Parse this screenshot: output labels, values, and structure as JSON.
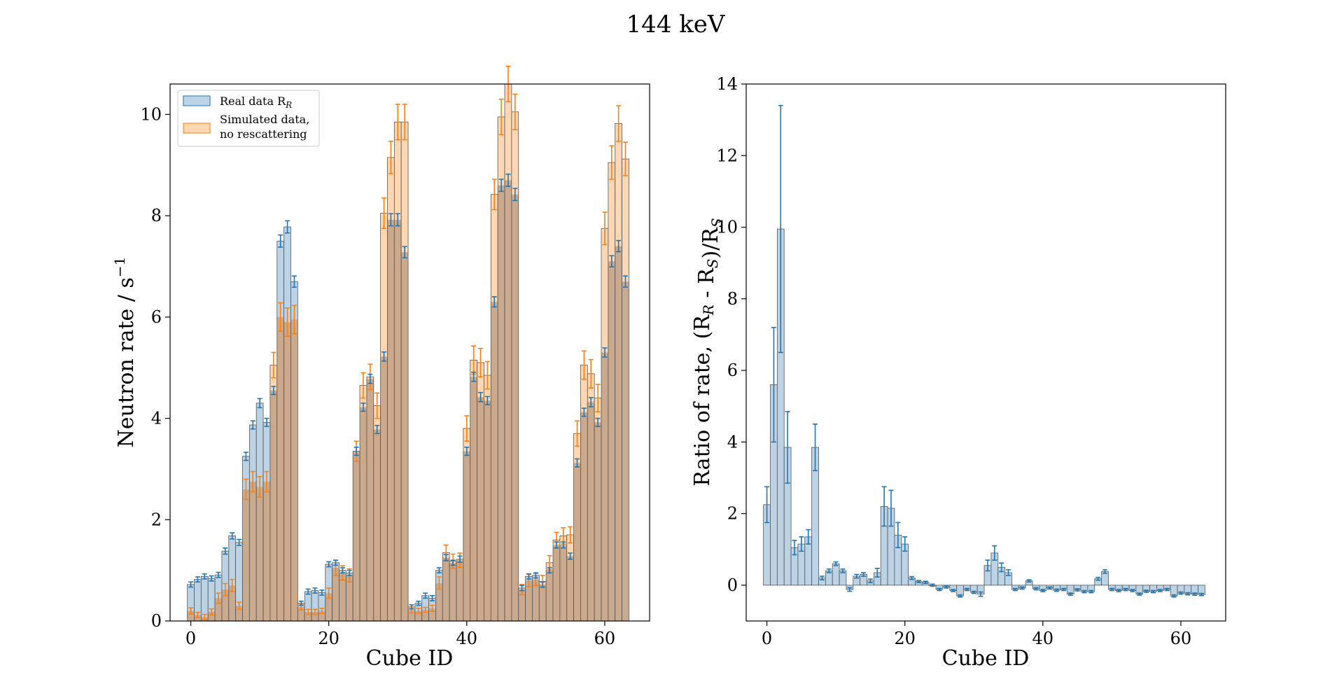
{
  "figure": {
    "suptitle": "144 keV"
  },
  "colors": {
    "real": "#1f77b4",
    "real_fill": "#bcd3e6",
    "sim": "#ff7f0e",
    "sim_fill": "#ffd8b3",
    "overlap": "#caa98c",
    "edge": "#555555"
  },
  "chart_data": [
    {
      "type": "bar",
      "xlabel": "Cube ID",
      "ylabel": "Neutron rate / s",
      "ylabel_sup": "−1",
      "xlim": [
        -3,
        66.5
      ],
      "ylim": [
        0,
        10.6
      ],
      "xticks": [
        0,
        20,
        40,
        60
      ],
      "yticks": [
        0,
        2,
        4,
        6,
        8,
        10
      ],
      "legend": {
        "position": "upper-left",
        "entries": [
          {
            "label": "Real data R",
            "sub": "R",
            "color": "real"
          },
          {
            "label": "Simulated data,",
            "label2": "no rescattering",
            "color": "sim"
          }
        ]
      },
      "series": [
        {
          "name": "Real data R_R",
          "values": [
            0.72,
            0.82,
            0.88,
            0.84,
            0.91,
            1.38,
            1.68,
            1.55,
            3.25,
            3.87,
            4.3,
            3.92,
            4.55,
            7.5,
            7.78,
            6.7,
            0.35,
            0.58,
            0.6,
            0.56,
            1.12,
            1.15,
            1.0,
            0.95,
            3.35,
            4.22,
            4.78,
            3.78,
            5.22,
            7.92,
            7.92,
            7.28,
            0.28,
            0.35,
            0.5,
            0.45,
            1.0,
            1.25,
            1.15,
            1.22,
            3.35,
            4.82,
            4.42,
            4.35,
            6.3,
            8.6,
            8.7,
            8.42,
            0.65,
            0.88,
            0.9,
            0.72,
            1.0,
            1.5,
            1.5,
            1.28,
            3.12,
            4.12,
            4.32,
            3.92,
            5.3,
            7.1,
            7.4,
            6.7
          ],
          "errors": [
            0.05,
            0.05,
            0.05,
            0.05,
            0.05,
            0.06,
            0.06,
            0.06,
            0.08,
            0.08,
            0.09,
            0.08,
            0.08,
            0.12,
            0.12,
            0.11,
            0.04,
            0.05,
            0.05,
            0.05,
            0.05,
            0.05,
            0.05,
            0.05,
            0.08,
            0.08,
            0.09,
            0.08,
            0.09,
            0.12,
            0.12,
            0.11,
            0.04,
            0.04,
            0.05,
            0.05,
            0.05,
            0.06,
            0.05,
            0.06,
            0.08,
            0.09,
            0.09,
            0.08,
            0.1,
            0.12,
            0.12,
            0.12,
            0.05,
            0.05,
            0.05,
            0.05,
            0.05,
            0.06,
            0.06,
            0.06,
            0.08,
            0.08,
            0.09,
            0.08,
            0.09,
            0.11,
            0.11,
            0.11
          ]
        },
        {
          "name": "Simulated data, no rescattering",
          "values": [
            0.2,
            0.12,
            0.08,
            0.18,
            0.45,
            0.62,
            0.7,
            0.3,
            2.6,
            2.75,
            2.65,
            2.75,
            5.05,
            6.0,
            5.9,
            5.95,
            0.28,
            0.18,
            0.18,
            0.2,
            0.55,
            1.05,
            0.95,
            0.9,
            3.35,
            4.65,
            4.82,
            4.25,
            8.05,
            9.15,
            9.85,
            9.85,
            0.22,
            0.2,
            0.22,
            0.25,
            0.75,
            1.35,
            1.18,
            1.2,
            3.8,
            5.15,
            5.1,
            4.85,
            8.42,
            9.95,
            10.6,
            10.05,
            0.62,
            0.8,
            0.82,
            0.78,
            1.15,
            1.6,
            1.68,
            1.7,
            3.7,
            5.05,
            4.88,
            4.4,
            7.75,
            9.05,
            9.82,
            9.12
          ],
          "errors": [
            0.06,
            0.05,
            0.05,
            0.06,
            0.1,
            0.12,
            0.12,
            0.07,
            0.2,
            0.2,
            0.2,
            0.2,
            0.25,
            0.28,
            0.28,
            0.28,
            0.06,
            0.05,
            0.05,
            0.05,
            0.1,
            0.15,
            0.14,
            0.13,
            0.2,
            0.25,
            0.25,
            0.25,
            0.3,
            0.32,
            0.35,
            0.35,
            0.06,
            0.05,
            0.05,
            0.06,
            0.12,
            0.15,
            0.14,
            0.14,
            0.25,
            0.28,
            0.28,
            0.27,
            0.3,
            0.35,
            0.35,
            0.35,
            0.1,
            0.12,
            0.12,
            0.12,
            0.14,
            0.15,
            0.16,
            0.16,
            0.25,
            0.28,
            0.28,
            0.27,
            0.32,
            0.33,
            0.35,
            0.33
          ]
        }
      ]
    },
    {
      "type": "bar",
      "xlabel": "Cube ID",
      "ylabel": "Ratio of rate, (R_R - R_S)/R_S",
      "xlim": [
        -3,
        66.5
      ],
      "ylim": [
        -1,
        14
      ],
      "xticks": [
        0,
        20,
        40,
        60
      ],
      "yticks": [
        0,
        2,
        4,
        6,
        8,
        10,
        12,
        14
      ],
      "series": [
        {
          "name": "(R_R - R_S)/R_S",
          "values": [
            2.25,
            5.6,
            9.95,
            3.85,
            1.05,
            1.15,
            1.35,
            3.85,
            0.2,
            0.4,
            0.6,
            0.4,
            -0.12,
            0.25,
            0.3,
            0.12,
            0.35,
            2.2,
            2.15,
            1.4,
            1.15,
            0.2,
            0.1,
            0.08,
            0.0,
            -0.12,
            -0.05,
            -0.15,
            -0.3,
            -0.12,
            -0.2,
            -0.25,
            0.55,
            0.9,
            0.5,
            0.35,
            -0.12,
            -0.08,
            0.12,
            -0.1,
            -0.15,
            -0.08,
            -0.14,
            -0.12,
            -0.25,
            -0.13,
            -0.18,
            -0.18,
            0.18,
            0.38,
            -0.12,
            -0.15,
            -0.12,
            -0.15,
            -0.25,
            -0.17,
            -0.18,
            -0.15,
            -0.12,
            -0.3,
            -0.22,
            -0.24,
            -0.25,
            -0.26
          ],
          "errors": [
            0.5,
            1.6,
            3.45,
            1.0,
            0.2,
            0.2,
            0.2,
            0.65,
            0.05,
            0.05,
            0.05,
            0.05,
            0.05,
            0.05,
            0.05,
            0.05,
            0.12,
            0.55,
            0.5,
            0.35,
            0.2,
            0.04,
            0.03,
            0.03,
            0.03,
            0.03,
            0.03,
            0.03,
            0.03,
            0.03,
            0.03,
            0.06,
            0.15,
            0.2,
            0.12,
            0.08,
            0.03,
            0.03,
            0.03,
            0.03,
            0.03,
            0.03,
            0.03,
            0.03,
            0.03,
            0.03,
            0.03,
            0.03,
            0.04,
            0.05,
            0.03,
            0.03,
            0.03,
            0.03,
            0.03,
            0.03,
            0.03,
            0.03,
            0.03,
            0.03,
            0.03,
            0.03,
            0.03,
            0.03
          ]
        }
      ]
    }
  ]
}
